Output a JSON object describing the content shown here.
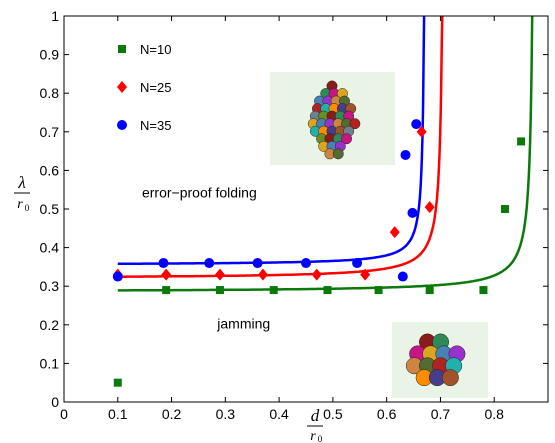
{
  "chart_data": {
    "type": "scatter",
    "xlabel": {
      "numerator": "d",
      "denominator": "r",
      "denominator_sub": "0"
    },
    "ylabel": {
      "numerator": "λ",
      "denominator": "r",
      "denominator_sub": "0"
    },
    "xlim": [
      0,
      0.9
    ],
    "ylim": [
      0,
      1
    ],
    "xticks": [
      0,
      0.1,
      0.2,
      0.3,
      0.4,
      0.5,
      0.6,
      0.7,
      0.8
    ],
    "xtick_labels": [
      "0",
      "0.1",
      "0.2",
      "0.3",
      "0.4",
      "0.5",
      "0.6",
      "0.7",
      "0.8"
    ],
    "yticks": [
      0,
      0.1,
      0.2,
      0.3,
      0.4,
      0.5,
      0.6,
      0.7,
      0.8,
      0.9,
      1
    ],
    "ytick_labels": [
      "0",
      "0.1",
      "0.2",
      "0.3",
      "0.4",
      "0.5",
      "0.6",
      "0.7",
      "0.8",
      "0.9",
      "1"
    ],
    "grid": false,
    "legend_position": "top-left",
    "series": [
      {
        "name": "N=10",
        "color": "#0a7a0a",
        "marker": "square",
        "points": [
          [
            0.1,
            0.05
          ],
          [
            0.19,
            0.29
          ],
          [
            0.29,
            0.29
          ],
          [
            0.39,
            0.29
          ],
          [
            0.49,
            0.29
          ],
          [
            0.585,
            0.29
          ],
          [
            0.68,
            0.29
          ],
          [
            0.78,
            0.29
          ],
          [
            0.82,
            0.5
          ],
          [
            0.85,
            0.675
          ]
        ],
        "fit": {
          "base": 0.285,
          "amplitude": 0.0032,
          "x_divergence": 0.875
        }
      },
      {
        "name": "N=25",
        "color": "#ff0000",
        "marker": "diamond",
        "points": [
          [
            0.1,
            0.33
          ],
          [
            0.19,
            0.33
          ],
          [
            0.29,
            0.33
          ],
          [
            0.37,
            0.33
          ],
          [
            0.47,
            0.33
          ],
          [
            0.56,
            0.33
          ],
          [
            0.615,
            0.44
          ],
          [
            0.665,
            0.7
          ],
          [
            0.68,
            0.505
          ]
        ],
        "fit": {
          "base": 0.32,
          "amplitude": 0.0028,
          "x_divergence": 0.707
        }
      },
      {
        "name": "N=35",
        "color": "#0000ff",
        "marker": "circle",
        "points": [
          [
            0.1,
            0.325
          ],
          [
            0.185,
            0.36
          ],
          [
            0.27,
            0.36
          ],
          [
            0.36,
            0.36
          ],
          [
            0.45,
            0.36
          ],
          [
            0.545,
            0.36
          ],
          [
            0.63,
            0.325
          ],
          [
            0.635,
            0.64
          ],
          [
            0.648,
            0.49
          ],
          [
            0.655,
            0.72
          ]
        ],
        "fit": {
          "base": 0.355,
          "amplitude": 0.0018,
          "x_divergence": 0.672
        }
      }
    ],
    "annotations": [
      {
        "text": "error−proof folding",
        "x": 0.145,
        "y": 0.53
      },
      {
        "text": "jamming",
        "x": 0.285,
        "y": 0.19
      }
    ],
    "insets": [
      "folded-cluster-image",
      "jammed-cluster-image"
    ]
  }
}
